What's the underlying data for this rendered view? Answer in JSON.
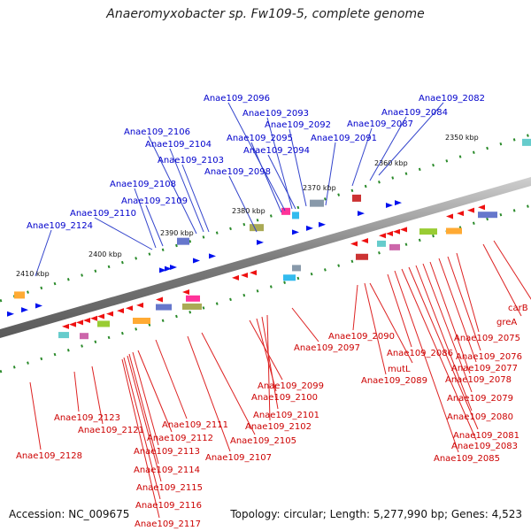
{
  "title": "Anaeromyxobacter sp. Fw109-5, complete genome",
  "footer": {
    "accession": "Accession: NC_009675",
    "topology": "Topology: circular; Length: 5,277,990 bp; Genes: 4,523"
  },
  "scale_labels": [
    "2350 kbp",
    "2360 kbp",
    "2370 kbp",
    "2380 kbp",
    "2390 kbp",
    "2400 kbp",
    "2410 kbp"
  ],
  "top_labels": [
    "Anae109_2096",
    "Anae109_2093",
    "Anae109_2092",
    "Anae109_2095",
    "Anae109_2094",
    "Anae109_2091",
    "Anae109_2087",
    "Anae109_2084",
    "Anae109_2082",
    "Anae109_2098",
    "Anae109_2106",
    "Anae109_2104",
    "Anae109_2103",
    "Anae109_2108",
    "Anae109_2109",
    "Anae109_2110",
    "Anae109_2124"
  ],
  "bottom_labels": [
    "Anae109_2097",
    "Anae109_2090",
    "mutL",
    "Anae109_2089",
    "Anae109_2086",
    "carB",
    "greA",
    "Anae109_2075",
    "Anae109_2076",
    "Anae109_2077",
    "Anae109_2078",
    "Anae109_2079",
    "Anae109_2080",
    "Anae109_2081",
    "Anae109_2083",
    "Anae109_2085",
    "Anae109_2099",
    "Anae109_2100",
    "Anae109_2101",
    "Anae109_2102",
    "Anae109_2105",
    "Anae109_2107",
    "Anae109_2111",
    "Anae109_2112",
    "Anae109_2113",
    "Anae109_2114",
    "Anae109_2115",
    "Anae109_2116",
    "Anae109_2117",
    "Anae109_2123",
    "Anae109_2121",
    "Anae109_2128"
  ],
  "colors": {
    "forward_label": "#0000cc",
    "reverse_label": "#cc0000",
    "backbone": "#888888",
    "forward_gene": "#0011ee",
    "reverse_gene": "#ee1111"
  }
}
